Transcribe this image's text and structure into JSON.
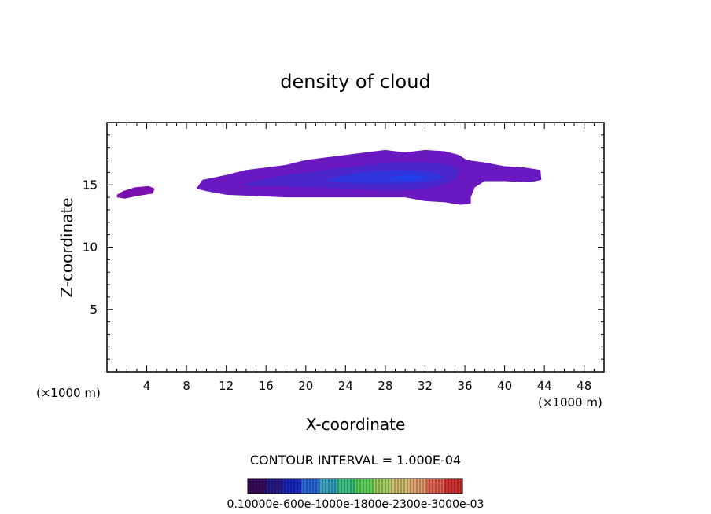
{
  "chart_data": {
    "type": "heatmap",
    "title": "density of cloud",
    "xlabel": "X-coordinate",
    "ylabel": "Z-coordinate",
    "x_unit_left": "(×1000 m)",
    "x_unit_right": "(×1000 m)",
    "xlim": [
      0,
      50
    ],
    "ylim": [
      0,
      20
    ],
    "xticks": [
      4,
      8,
      12,
      16,
      20,
      24,
      28,
      32,
      36,
      40,
      44,
      48
    ],
    "xtick_labels": [
      "4",
      "8",
      "12",
      "16",
      "20",
      "24",
      "28",
      "32",
      "36",
      "40",
      "44",
      "48"
    ],
    "yticks": [
      5,
      10,
      15
    ],
    "ytick_labels": [
      "5",
      "10",
      "15"
    ],
    "contour_interval_label": "CONTOUR INTERVAL = 1.000E-04",
    "colorbar_labels_text": "0.10000e-600e-1000e-1800e-2300e-3000e-03",
    "colorbar_colors": [
      "#3a0a5a",
      "#2a1a8a",
      "#1a2ac0",
      "#2a6ad8",
      "#3aa0c0",
      "#3ac080",
      "#5ad05a",
      "#a0d060",
      "#d0c070",
      "#e0a070",
      "#e06050",
      "#d03030"
    ],
    "cloud_regions": [
      {
        "points": [
          [
            1.0,
            14.2
          ],
          [
            1.6,
            14.5
          ],
          [
            2.8,
            14.8
          ],
          [
            4.2,
            14.9
          ],
          [
            4.8,
            14.7
          ],
          [
            4.6,
            14.3
          ],
          [
            3.0,
            14.1
          ],
          [
            1.8,
            13.9
          ],
          [
            1.0,
            14.0
          ]
        ],
        "level": 0
      },
      {
        "points": [
          [
            9.0,
            14.7
          ],
          [
            9.6,
            15.4
          ],
          [
            12.0,
            15.8
          ],
          [
            14.0,
            16.2
          ],
          [
            16.0,
            16.4
          ],
          [
            18.0,
            16.6
          ],
          [
            20.0,
            17.0
          ],
          [
            22.0,
            17.2
          ],
          [
            24.0,
            17.4
          ],
          [
            26.0,
            17.6
          ],
          [
            28.0,
            17.8
          ],
          [
            30.0,
            17.6
          ],
          [
            32.0,
            17.8
          ],
          [
            34.0,
            17.7
          ],
          [
            35.4,
            17.4
          ],
          [
            36.2,
            17.0
          ],
          [
            38.0,
            16.8
          ],
          [
            40.0,
            16.5
          ],
          [
            42.0,
            16.4
          ],
          [
            43.6,
            16.2
          ],
          [
            43.7,
            15.4
          ],
          [
            42.5,
            15.2
          ],
          [
            40.0,
            15.3
          ],
          [
            38.0,
            15.3
          ],
          [
            37.0,
            14.8
          ],
          [
            36.6,
            14.0
          ],
          [
            36.6,
            13.5
          ],
          [
            35.6,
            13.4
          ],
          [
            34.0,
            13.6
          ],
          [
            32.0,
            13.7
          ],
          [
            30.0,
            14.0
          ],
          [
            27.0,
            14.0
          ],
          [
            24.0,
            14.0
          ],
          [
            21.0,
            14.0
          ],
          [
            18.0,
            14.0
          ],
          [
            15.0,
            14.1
          ],
          [
            12.0,
            14.2
          ],
          [
            10.0,
            14.5
          ]
        ],
        "level": 1
      },
      {
        "points": [
          [
            13.5,
            15.0
          ],
          [
            16.0,
            15.5
          ],
          [
            18.0,
            15.8
          ],
          [
            20.0,
            16.0
          ],
          [
            23.0,
            16.3
          ],
          [
            26.0,
            16.6
          ],
          [
            29.0,
            16.8
          ],
          [
            32.0,
            16.8
          ],
          [
            34.5,
            16.6
          ],
          [
            35.5,
            16.2
          ],
          [
            35.0,
            15.4
          ],
          [
            33.0,
            14.8
          ],
          [
            30.0,
            14.6
          ],
          [
            27.0,
            14.6
          ],
          [
            24.0,
            14.7
          ],
          [
            21.0,
            14.8
          ],
          [
            18.0,
            14.9
          ],
          [
            15.0,
            14.9
          ]
        ],
        "level": 2
      },
      {
        "points": [
          [
            22.0,
            15.4
          ],
          [
            24.0,
            15.8
          ],
          [
            27.0,
            16.1
          ],
          [
            30.0,
            16.2
          ],
          [
            33.0,
            16.0
          ],
          [
            34.0,
            15.6
          ],
          [
            32.0,
            15.2
          ],
          [
            29.0,
            15.1
          ],
          [
            26.0,
            15.1
          ],
          [
            23.0,
            15.2
          ]
        ],
        "level": 3
      },
      {
        "points": [
          [
            28.0,
            15.5
          ],
          [
            30.0,
            15.8
          ],
          [
            32.0,
            15.7
          ],
          [
            31.0,
            15.4
          ],
          [
            29.0,
            15.4
          ]
        ],
        "level": 4
      }
    ]
  }
}
